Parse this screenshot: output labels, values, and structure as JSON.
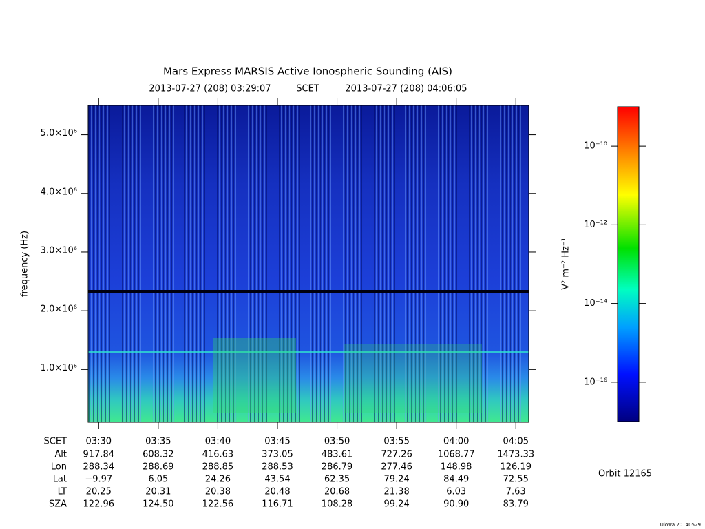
{
  "chart_data": {
    "type": "spectrogram",
    "title": "Mars Express MARSIS Active Ionospheric Sounding (AIS)",
    "start_time": "2013-07-27 (208) 03:29:07",
    "time_frame": "SCET",
    "end_time": "2013-07-27 (208) 04:06:05",
    "ylabel": "frequency (Hz)",
    "ylim": [
      100000,
      5500000
    ],
    "yticks": [
      {
        "value": 1000000,
        "label": "1.0×10⁶"
      },
      {
        "value": 2000000,
        "label": "2.0×10⁶"
      },
      {
        "value": 3000000,
        "label": "3.0×10⁶"
      },
      {
        "value": 4000000,
        "label": "4.0×10⁶"
      },
      {
        "value": 5000000,
        "label": "5.0×10⁶"
      }
    ],
    "xlim": [
      "03:29:07",
      "04:06:05"
    ],
    "xlabel": "SCET",
    "xticks": [
      "03:30",
      "03:35",
      "03:40",
      "03:45",
      "03:50",
      "03:55",
      "04:00",
      "04:05"
    ],
    "ephemeris": [
      {
        "label": "Alt",
        "values": [
          "917.84",
          "608.32",
          "416.63",
          "373.05",
          "483.61",
          "727.26",
          "1068.77",
          "1473.33"
        ]
      },
      {
        "label": "Lon",
        "values": [
          "288.34",
          "288.69",
          "288.85",
          "288.53",
          "286.79",
          "277.46",
          "148.98",
          "126.19"
        ]
      },
      {
        "label": "Lat",
        "values": [
          "−9.97",
          "6.05",
          "24.26",
          "43.54",
          "62.35",
          "79.24",
          "84.49",
          "72.55"
        ]
      },
      {
        "label": "LT",
        "values": [
          "20.25",
          "20.31",
          "20.38",
          "20.48",
          "20.68",
          "21.38",
          "6.03",
          "7.63"
        ]
      },
      {
        "label": "SZA",
        "values": [
          "122.96",
          "124.50",
          "122.56",
          "116.71",
          "108.28",
          "99.24",
          "90.90",
          "83.79"
        ]
      }
    ],
    "colorbar_label": "V² m⁻² Hz⁻¹",
    "colorbar_log": true,
    "clim": [
      1e-17,
      1e-09
    ],
    "colorbar_ticks": [
      {
        "value": 1e-10,
        "label": "10⁻¹⁰"
      },
      {
        "value": 1e-12,
        "label": "10⁻¹²"
      },
      {
        "value": 1e-14,
        "label": "10⁻¹⁴"
      },
      {
        "value": 1e-16,
        "label": "10⁻¹⁶"
      }
    ],
    "orbit": "Orbit 12165",
    "footer": "Uiowa 20140529"
  }
}
